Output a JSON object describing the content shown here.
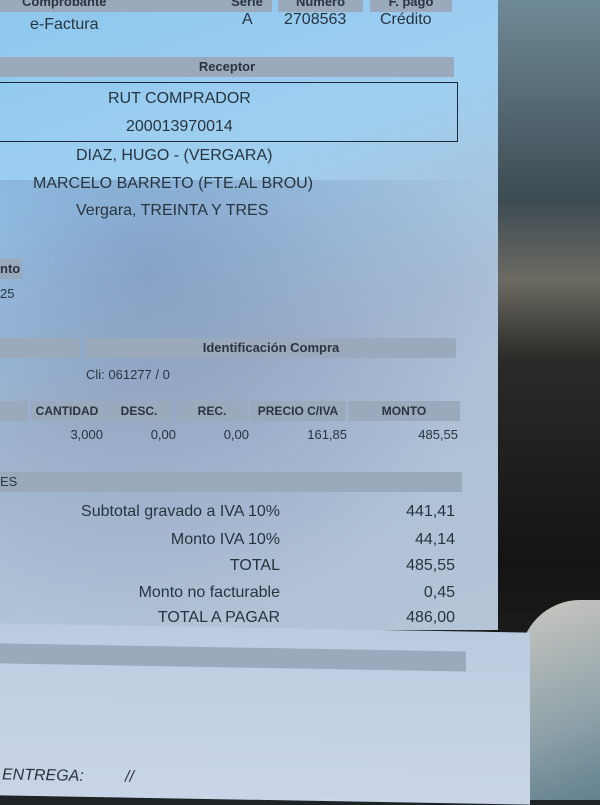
{
  "header": {
    "labels": {
      "comprobante": "Comprobante",
      "serie": "Serie",
      "numero": "Número",
      "fpago": "F. pago"
    },
    "values": {
      "comprobante": "e-Factura",
      "serie": "A",
      "numero": "2708563",
      "fpago": "Crédito"
    }
  },
  "receptor": {
    "title": "Receptor",
    "rut_label": "RUT COMPRADOR",
    "rut": "200013970014",
    "name": "DIAZ, HUGO  - (VERGARA)",
    "address": "MARCELO BARRETO (FTE.AL BROU)",
    "city": "Vergara, TREINTA Y TRES"
  },
  "left_fragment": {
    "label": "nto",
    "value": "25"
  },
  "identificacion": {
    "title": "Identificación Compra",
    "cliente": "Cli: 061277 / 0"
  },
  "items": {
    "columns": [
      "CANTIDAD",
      "DESC.",
      "REC.",
      "PRECIO C/IVA",
      "MONTO"
    ],
    "rows": [
      [
        "3,000",
        "0,00",
        "0,00",
        "161,85",
        "485,55"
      ]
    ]
  },
  "totals_fragment": "ES",
  "totals": [
    {
      "label": "Subtotal gravado a IVA 10%",
      "value": "441,41"
    },
    {
      "label": "Monto IVA 10%",
      "value": "44,14"
    },
    {
      "label": "TOTAL",
      "value": "485,55"
    },
    {
      "label": "Monto no facturable",
      "value": "0,45"
    },
    {
      "label": "TOTAL A PAGAR",
      "value": "486,00"
    }
  ],
  "footer": {
    "entrega_label": "ENTREGA:",
    "entrega_value": "//"
  }
}
